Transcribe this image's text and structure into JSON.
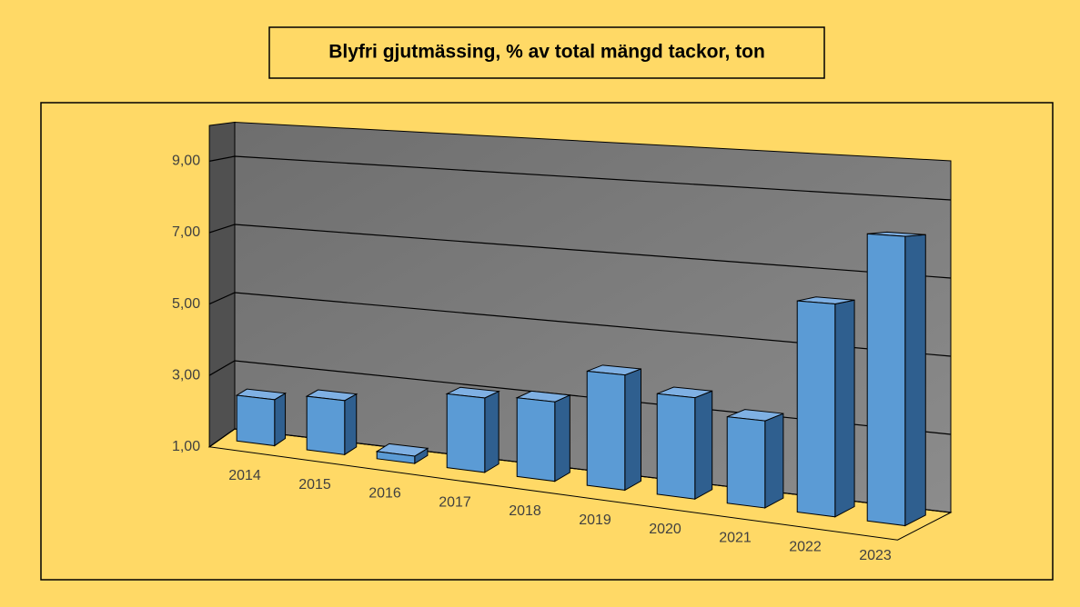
{
  "chart_data": {
    "type": "bar3d",
    "title": "Blyfri gjutmässing, % av total mängd tackor, ton",
    "categories": [
      "2014",
      "2015",
      "2016",
      "2017",
      "2018",
      "2019",
      "2020",
      "2021",
      "2022",
      "2023"
    ],
    "values": [
      2.3,
      2.5,
      1.2,
      3.0,
      3.1,
      4.0,
      3.6,
      3.2,
      6.3,
      8.1
    ],
    "color": "#5b9bd5",
    "ylim": [
      1,
      10
    ],
    "yticks": [
      {
        "value": 1,
        "label": "1,00"
      },
      {
        "value": 3,
        "label": "3,00"
      },
      {
        "value": 5,
        "label": "5,00"
      },
      {
        "value": 7,
        "label": "7,00"
      },
      {
        "value": 9,
        "label": "9,00"
      }
    ],
    "grid": true
  }
}
